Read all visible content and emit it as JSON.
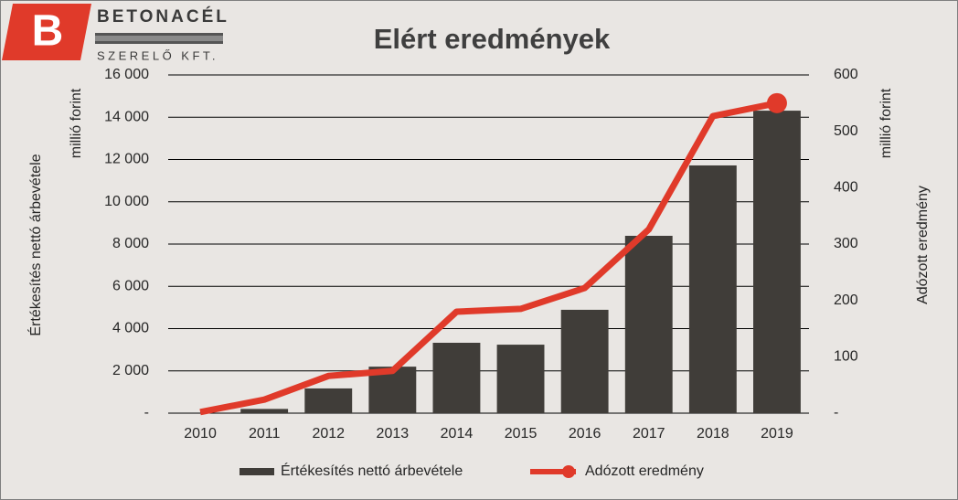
{
  "logo": {
    "letter": "B",
    "name": "BETONACÉL",
    "subtitle": "SZERELŐ KFT."
  },
  "chart_data": {
    "type": "bar",
    "title": "Elért eredmények",
    "y_label": "Értékesítés nettó árbevétele",
    "y_unit": "millió forint",
    "y2_label": "Adózott eredmény",
    "y2_unit": "millió forint",
    "categories": [
      "2010",
      "2011",
      "2012",
      "2013",
      "2014",
      "2015",
      "2016",
      "2017",
      "2018",
      "2019"
    ],
    "series": [
      {
        "name": "Értékesítés nettó árbevétele",
        "type": "bar",
        "color": "#403d39",
        "values": [
          0,
          200,
          1170,
          2200,
          3330,
          3240,
          4890,
          8390,
          11720,
          14310
        ]
      },
      {
        "name": "Adózott eredmény",
        "type": "line",
        "axis": "y2",
        "color": "#e03a2a",
        "end_marker": true,
        "values": [
          2,
          24,
          66,
          75,
          180,
          185,
          222,
          326,
          527,
          550
        ]
      }
    ],
    "ylim": [
      0,
      16000
    ],
    "yticks": [
      {
        "value": 0,
        "label": "-"
      },
      {
        "value": 2000,
        "label": "2 000"
      },
      {
        "value": 4000,
        "label": "4 000"
      },
      {
        "value": 6000,
        "label": "6 000"
      },
      {
        "value": 8000,
        "label": "8 000"
      },
      {
        "value": 10000,
        "label": "10 000"
      },
      {
        "value": 12000,
        "label": "12 000"
      },
      {
        "value": 14000,
        "label": "14 000"
      },
      {
        "value": 16000,
        "label": "16 000"
      }
    ],
    "y2lim": [
      0,
      600
    ],
    "y2ticks": [
      {
        "value": 0,
        "label": "-"
      },
      100,
      200,
      300,
      400,
      500,
      600
    ],
    "grid": true,
    "legend": "bottom"
  }
}
